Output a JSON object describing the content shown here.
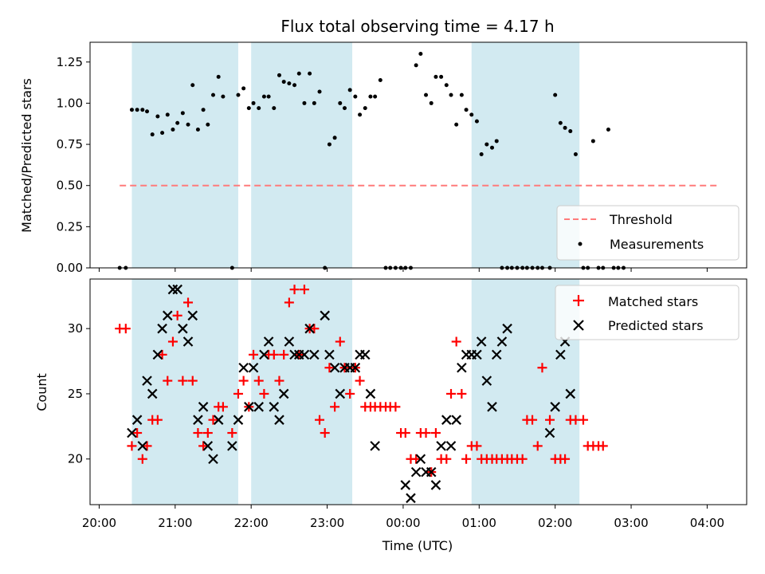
{
  "chart_data": {
    "type": "scatter",
    "title": "Flux total observing time = 4.17 h",
    "xlabel": "Time (UTC)",
    "x_ticks": [
      "20:00",
      "21:00",
      "22:00",
      "23:00",
      "00:00",
      "01:00",
      "02:00",
      "03:00",
      "04:00"
    ],
    "x_range_hours": [
      19.88,
      28.52
    ],
    "shaded_intervals": [
      [
        20.43,
        21.83
      ],
      [
        22.0,
        23.33
      ],
      [
        24.9,
        26.32
      ]
    ],
    "colors": {
      "shade": "#add8e6",
      "threshold": "#ff7b7b",
      "matched": "#ff0000",
      "predicted": "#000000",
      "measurements": "#000000"
    },
    "top": {
      "ylabel": "Matched/Predicted stars",
      "ylim": [
        0,
        1.37
      ],
      "yticks": [
        0.0,
        0.25,
        0.5,
        0.75,
        1.0,
        1.25
      ],
      "ytick_labels": [
        "0.00",
        "0.25",
        "0.50",
        "0.75",
        "1.00",
        "1.25"
      ],
      "threshold": {
        "name": "Threshold",
        "y": 0.5,
        "x_start": 20.27,
        "x_end": 28.17
      },
      "series": [
        {
          "name": "Measurements",
          "points": [
            [
              20.27,
              0.0
            ],
            [
              20.35,
              0.0
            ],
            [
              20.43,
              0.96
            ],
            [
              20.5,
              0.96
            ],
            [
              20.57,
              0.96
            ],
            [
              20.63,
              0.95
            ],
            [
              20.7,
              0.81
            ],
            [
              20.77,
              0.92
            ],
            [
              20.83,
              0.82
            ],
            [
              20.9,
              0.93
            ],
            [
              20.97,
              0.84
            ],
            [
              21.03,
              0.88
            ],
            [
              21.1,
              0.94
            ],
            [
              21.17,
              0.87
            ],
            [
              21.23,
              1.11
            ],
            [
              21.3,
              0.84
            ],
            [
              21.37,
              0.96
            ],
            [
              21.43,
              0.87
            ],
            [
              21.5,
              1.05
            ],
            [
              21.57,
              1.16
            ],
            [
              21.63,
              1.04
            ],
            [
              21.75,
              0.0
            ],
            [
              21.83,
              1.05
            ],
            [
              21.9,
              1.09
            ],
            [
              21.97,
              0.97
            ],
            [
              22.03,
              1.0
            ],
            [
              22.1,
              0.97
            ],
            [
              22.17,
              1.04
            ],
            [
              22.23,
              1.04
            ],
            [
              22.3,
              0.97
            ],
            [
              22.37,
              1.17
            ],
            [
              22.43,
              1.13
            ],
            [
              22.5,
              1.12
            ],
            [
              22.57,
              1.11
            ],
            [
              22.63,
              1.18
            ],
            [
              22.7,
              1.0
            ],
            [
              22.77,
              1.18
            ],
            [
              22.83,
              1.0
            ],
            [
              22.9,
              1.07
            ],
            [
              22.97,
              0.0
            ],
            [
              23.03,
              0.75
            ],
            [
              23.1,
              0.79
            ],
            [
              23.17,
              1.0
            ],
            [
              23.23,
              0.97
            ],
            [
              23.3,
              1.08
            ],
            [
              23.37,
              1.04
            ],
            [
              23.43,
              0.93
            ],
            [
              23.5,
              0.97
            ],
            [
              23.57,
              1.04
            ],
            [
              23.63,
              1.04
            ],
            [
              23.7,
              1.14
            ],
            [
              23.77,
              0.0
            ],
            [
              23.83,
              0.0
            ],
            [
              23.9,
              0.0
            ],
            [
              23.97,
              0.0
            ],
            [
              24.03,
              0.0
            ],
            [
              24.1,
              0.0
            ],
            [
              24.17,
              1.23
            ],
            [
              24.23,
              1.3
            ],
            [
              24.3,
              1.05
            ],
            [
              24.37,
              1.0
            ],
            [
              24.43,
              1.16
            ],
            [
              24.5,
              1.16
            ],
            [
              24.57,
              1.11
            ],
            [
              24.63,
              1.05
            ],
            [
              24.7,
              0.87
            ],
            [
              24.77,
              1.05
            ],
            [
              24.83,
              0.96
            ],
            [
              24.9,
              0.93
            ],
            [
              24.97,
              0.89
            ],
            [
              25.03,
              0.69
            ],
            [
              25.1,
              0.75
            ],
            [
              25.17,
              0.73
            ],
            [
              25.23,
              0.77
            ],
            [
              25.3,
              0.0
            ],
            [
              25.37,
              0.0
            ],
            [
              25.43,
              0.0
            ],
            [
              25.5,
              0.0
            ],
            [
              25.57,
              0.0
            ],
            [
              25.63,
              0.0
            ],
            [
              25.7,
              0.0
            ],
            [
              25.77,
              0.0
            ],
            [
              25.83,
              0.0
            ],
            [
              25.93,
              0.0
            ],
            [
              26.0,
              1.05
            ],
            [
              26.07,
              0.88
            ],
            [
              26.13,
              0.85
            ],
            [
              26.2,
              0.83
            ],
            [
              26.27,
              0.69
            ],
            [
              26.37,
              0.0
            ],
            [
              26.43,
              0.0
            ],
            [
              26.5,
              0.77
            ],
            [
              26.57,
              0.0
            ],
            [
              26.63,
              0.0
            ],
            [
              26.7,
              0.84
            ],
            [
              26.77,
              0.0
            ],
            [
              26.83,
              0.0
            ],
            [
              26.9,
              0.0
            ]
          ]
        }
      ],
      "legend": {
        "position": "lower right",
        "entries": [
          "Threshold",
          "Measurements"
        ]
      }
    },
    "bottom": {
      "ylabel": "Count",
      "ylim": [
        16.5,
        33.8
      ],
      "yticks": [
        20,
        25,
        30
      ],
      "ytick_labels": [
        "20",
        "25",
        "30"
      ],
      "series": [
        {
          "name": "Matched stars",
          "marker": "plus",
          "points": [
            [
              20.27,
              30
            ],
            [
              20.35,
              30
            ],
            [
              20.43,
              21
            ],
            [
              20.5,
              22
            ],
            [
              20.57,
              20
            ],
            [
              20.63,
              21
            ],
            [
              20.7,
              23
            ],
            [
              20.77,
              23
            ],
            [
              20.83,
              28
            ],
            [
              20.9,
              26
            ],
            [
              20.97,
              29
            ],
            [
              21.03,
              31
            ],
            [
              21.1,
              26
            ],
            [
              21.17,
              32
            ],
            [
              21.23,
              26
            ],
            [
              21.3,
              22
            ],
            [
              21.37,
              21
            ],
            [
              21.43,
              22
            ],
            [
              21.5,
              23
            ],
            [
              21.57,
              24
            ],
            [
              21.63,
              24
            ],
            [
              21.75,
              22
            ],
            [
              21.83,
              25
            ],
            [
              21.9,
              26
            ],
            [
              21.97,
              24
            ],
            [
              22.03,
              28
            ],
            [
              22.1,
              26
            ],
            [
              22.17,
              25
            ],
            [
              22.23,
              28
            ],
            [
              22.3,
              28
            ],
            [
              22.37,
              26
            ],
            [
              22.43,
              28
            ],
            [
              22.5,
              32
            ],
            [
              22.57,
              33
            ],
            [
              22.63,
              28
            ],
            [
              22.7,
              33
            ],
            [
              22.77,
              30
            ],
            [
              22.83,
              30
            ],
            [
              22.9,
              23
            ],
            [
              22.97,
              22
            ],
            [
              23.03,
              27
            ],
            [
              23.1,
              24
            ],
            [
              23.17,
              29
            ],
            [
              23.23,
              27
            ],
            [
              23.3,
              25
            ],
            [
              23.37,
              27
            ],
            [
              23.43,
              26
            ],
            [
              23.5,
              24
            ],
            [
              23.57,
              24
            ],
            [
              23.63,
              24
            ],
            [
              23.7,
              24
            ],
            [
              23.77,
              24
            ],
            [
              23.83,
              24
            ],
            [
              23.9,
              24
            ],
            [
              23.97,
              22
            ],
            [
              24.03,
              22
            ],
            [
              24.1,
              20
            ],
            [
              24.17,
              20
            ],
            [
              24.23,
              22
            ],
            [
              24.3,
              22
            ],
            [
              24.37,
              19
            ],
            [
              24.43,
              22
            ],
            [
              24.5,
              20
            ],
            [
              24.57,
              20
            ],
            [
              24.63,
              25
            ],
            [
              24.7,
              29
            ],
            [
              24.77,
              25
            ],
            [
              24.83,
              20
            ],
            [
              24.9,
              21
            ],
            [
              24.97,
              21
            ],
            [
              25.03,
              20
            ],
            [
              25.1,
              20
            ],
            [
              25.17,
              20
            ],
            [
              25.23,
              20
            ],
            [
              25.3,
              20
            ],
            [
              25.37,
              20
            ],
            [
              25.43,
              20
            ],
            [
              25.5,
              20
            ],
            [
              25.57,
              20
            ],
            [
              25.63,
              23
            ],
            [
              25.7,
              23
            ],
            [
              25.77,
              21
            ],
            [
              25.83,
              27
            ],
            [
              25.93,
              23
            ],
            [
              26.0,
              20
            ],
            [
              26.07,
              20
            ],
            [
              26.13,
              20
            ],
            [
              26.2,
              23
            ],
            [
              26.27,
              23
            ],
            [
              26.37,
              23
            ],
            [
              26.43,
              21
            ],
            [
              26.5,
              21
            ],
            [
              26.57,
              21
            ],
            [
              26.63,
              21
            ]
          ]
        },
        {
          "name": "Predicted stars",
          "marker": "x",
          "points": [
            [
              20.43,
              22
            ],
            [
              20.5,
              23
            ],
            [
              20.57,
              21
            ],
            [
              20.63,
              26
            ],
            [
              20.7,
              25
            ],
            [
              20.77,
              28
            ],
            [
              20.83,
              30
            ],
            [
              20.9,
              31
            ],
            [
              20.97,
              33
            ],
            [
              21.03,
              33
            ],
            [
              21.1,
              30
            ],
            [
              21.17,
              29
            ],
            [
              21.23,
              31
            ],
            [
              21.3,
              23
            ],
            [
              21.37,
              24
            ],
            [
              21.43,
              21
            ],
            [
              21.5,
              20
            ],
            [
              21.57,
              23
            ],
            [
              21.75,
              21
            ],
            [
              21.83,
              23
            ],
            [
              21.9,
              27
            ],
            [
              21.97,
              24
            ],
            [
              22.03,
              27
            ],
            [
              22.1,
              24
            ],
            [
              22.17,
              28
            ],
            [
              22.23,
              29
            ],
            [
              22.3,
              24
            ],
            [
              22.37,
              23
            ],
            [
              22.43,
              25
            ],
            [
              22.5,
              29
            ],
            [
              22.57,
              28
            ],
            [
              22.63,
              28
            ],
            [
              22.7,
              28
            ],
            [
              22.77,
              30
            ],
            [
              22.83,
              28
            ],
            [
              22.97,
              31
            ],
            [
              23.03,
              28
            ],
            [
              23.1,
              27
            ],
            [
              23.17,
              25
            ],
            [
              23.23,
              27
            ],
            [
              23.3,
              27
            ],
            [
              23.37,
              27
            ],
            [
              23.43,
              28
            ],
            [
              23.5,
              28
            ],
            [
              23.57,
              25
            ],
            [
              23.63,
              21
            ],
            [
              24.03,
              18
            ],
            [
              24.1,
              17
            ],
            [
              24.17,
              19
            ],
            [
              24.23,
              20
            ],
            [
              24.3,
              19
            ],
            [
              24.37,
              19
            ],
            [
              24.43,
              18
            ],
            [
              24.5,
              21
            ],
            [
              24.57,
              23
            ],
            [
              24.63,
              21
            ],
            [
              24.7,
              23
            ],
            [
              24.77,
              27
            ],
            [
              24.83,
              28
            ],
            [
              24.9,
              28
            ],
            [
              24.97,
              28
            ],
            [
              25.03,
              29
            ],
            [
              25.1,
              26
            ],
            [
              25.17,
              24
            ],
            [
              25.23,
              28
            ],
            [
              25.3,
              29
            ],
            [
              25.37,
              30
            ],
            [
              25.93,
              22
            ],
            [
              26.0,
              24
            ],
            [
              26.07,
              28
            ],
            [
              26.13,
              29
            ],
            [
              26.2,
              25
            ]
          ]
        }
      ],
      "legend": {
        "position": "upper right",
        "entries": [
          "Matched stars",
          "Predicted stars"
        ]
      }
    }
  }
}
